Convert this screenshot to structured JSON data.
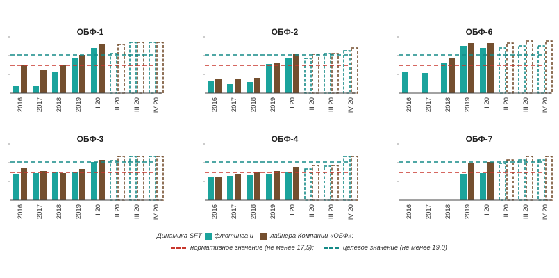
{
  "colors": {
    "flooting": "#1ba39c",
    "liner": "#744f2f",
    "normative": "#c8372d",
    "target": "#158a87",
    "axis": "#444444"
  },
  "legend": {
    "prefix": "Динамика SFT",
    "flooting": "флютинга и",
    "liner": "лайнера Компании «ОБФ»:",
    "normative": "нормативное значение (не менее 17,5);",
    "target": "целевое значение (не менее 19,0)"
  },
  "chart_data": [
    {
      "type": "bar",
      "title": "ОБФ-1",
      "categories": [
        "2016",
        "2017",
        "2018",
        "2019",
        "I 20",
        "II 20",
        "III 20",
        "IV 20"
      ],
      "series": [
        {
          "values": [
            14.5,
            14.5,
            16.5,
            18.5,
            20.0,
            null,
            null,
            null
          ]
        },
        {
          "values": [
            17.5,
            16.8,
            17.5,
            19.0,
            20.5,
            null,
            null,
            null
          ]
        }
      ],
      "forecast": [
        {
          "flooting": 19.2,
          "liner": 20.5
        },
        {
          "flooting": 20.8,
          "liner": 20.8
        },
        {
          "flooting": 20.8,
          "liner": 20.8
        }
      ],
      "normative": 17.5,
      "target": 19.0,
      "ylim": [
        13.5,
        21.5
      ]
    },
    {
      "type": "bar",
      "title": "ОБФ-2",
      "categories": [
        "2016",
        "2017",
        "2018",
        "2019",
        "I 20",
        "II 20",
        "III 20",
        "IV 20"
      ],
      "series": [
        {
          "values": [
            15.2,
            14.8,
            15.1,
            17.7,
            18.5,
            null,
            null,
            null
          ]
        },
        {
          "values": [
            15.5,
            15.5,
            15.7,
            17.9,
            19.2,
            null,
            null,
            null
          ]
        }
      ],
      "forecast": [
        {
          "flooting": 18.5,
          "liner": 19.1
        },
        {
          "flooting": 19.2,
          "liner": 19.2
        },
        {
          "flooting": 19.6,
          "liner": 20.0
        }
      ],
      "normative": 17.5,
      "target": 19.0,
      "ylim": [
        13.5,
        21.5
      ]
    },
    {
      "type": "bar",
      "title": "ОБФ-6",
      "categories": [
        "2016",
        "2017",
        "2018",
        "2019",
        "I 20",
        "II 20",
        "III 20",
        "IV 20"
      ],
      "series": [
        {
          "values": [
            16.6,
            16.4,
            17.8,
            20.3,
            20.0,
            null,
            null,
            null
          ]
        },
        {
          "values": [
            null,
            null,
            18.5,
            20.7,
            20.7,
            null,
            null,
            null
          ]
        }
      ],
      "forecast": [
        {
          "flooting": 20.0,
          "liner": 20.7
        },
        {
          "flooting": 20.3,
          "liner": 21.0
        },
        {
          "flooting": 20.3,
          "liner": 21.0
        }
      ],
      "normative": 17.5,
      "target": 19.0,
      "ylim": [
        13.5,
        21.5
      ]
    },
    {
      "type": "bar",
      "title": "ОБФ-3",
      "categories": [
        "2016",
        "2017",
        "2018",
        "2019",
        "I 20",
        "II 20",
        "III 20",
        "IV 20"
      ],
      "series": [
        {
          "values": [
            17.2,
            17.4,
            17.5,
            17.5,
            19.0,
            null,
            null,
            null
          ]
        },
        {
          "values": [
            18.1,
            17.7,
            17.4,
            18.0,
            19.3,
            null,
            null,
            null
          ]
        }
      ],
      "forecast": [
        {
          "flooting": 19.2,
          "liner": 19.8
        },
        {
          "flooting": 19.8,
          "liner": 19.8
        },
        {
          "flooting": 19.8,
          "liner": 19.8
        }
      ],
      "normative": 17.5,
      "target": 19.0,
      "ylim": [
        13.5,
        21.5
      ]
    },
    {
      "type": "bar",
      "title": "ОБФ-4",
      "categories": [
        "2016",
        "2017",
        "2018",
        "2019",
        "I 20",
        "II 20",
        "III 20",
        "IV 20"
      ],
      "series": [
        {
          "values": [
            16.8,
            17.0,
            17.1,
            17.2,
            17.5,
            null,
            null,
            null
          ]
        },
        {
          "values": [
            16.8,
            17.3,
            17.5,
            17.7,
            18.3,
            null,
            null,
            null
          ]
        }
      ],
      "forecast": [
        {
          "flooting": 18.0,
          "liner": 18.5
        },
        {
          "flooting": 18.4,
          "liner": 18.5
        },
        {
          "flooting": 19.8,
          "liner": 19.8
        }
      ],
      "normative": 17.5,
      "target": 19.0,
      "ylim": [
        13.5,
        21.5
      ]
    },
    {
      "type": "bar",
      "title": "ОБФ-7",
      "categories": [
        "2016",
        "2017",
        "2018",
        "2019",
        "I 20",
        "II 20",
        "III 20",
        "IV 20"
      ],
      "series": [
        {
          "values": [
            null,
            null,
            null,
            17.2,
            17.4,
            null,
            null,
            null
          ]
        },
        {
          "values": [
            null,
            null,
            null,
            18.8,
            19.0,
            null,
            null,
            null
          ]
        }
      ],
      "forecast": [
        {
          "flooting": 18.8,
          "liner": 19.3
        },
        {
          "flooting": 19.3,
          "liner": 19.8
        },
        {
          "flooting": 19.3,
          "liner": 19.8
        }
      ],
      "normative": 17.5,
      "target": 19.0,
      "ylim": [
        13.5,
        21.5
      ]
    }
  ]
}
